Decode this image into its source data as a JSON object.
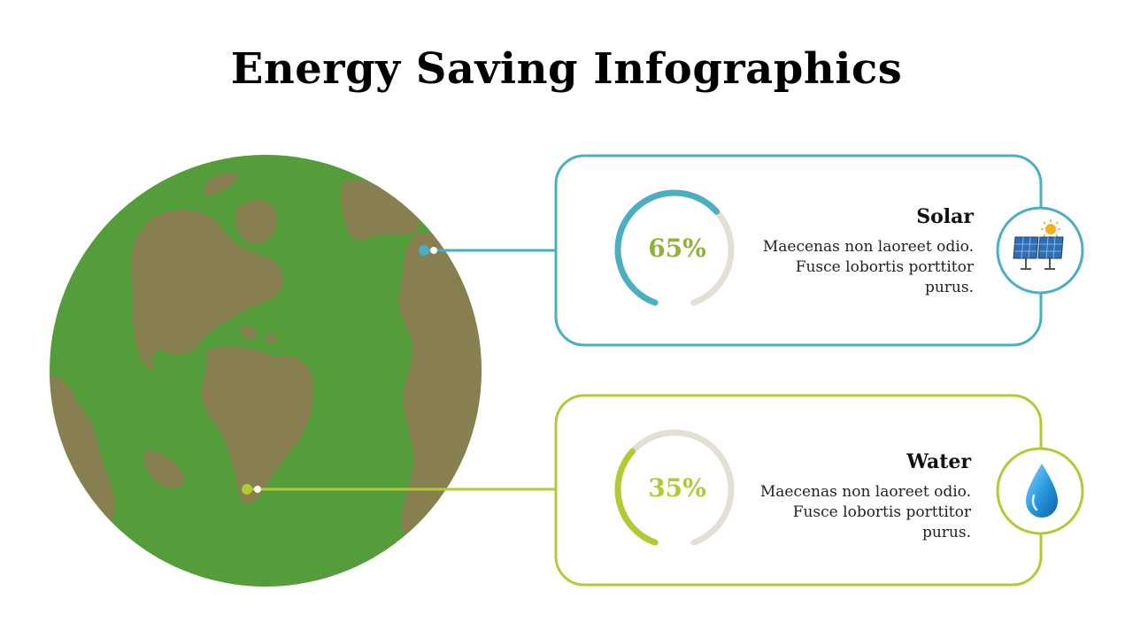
{
  "title": "Energy Saving Infographics",
  "colors": {
    "ocean": "#559C3A",
    "land": "#877F50",
    "solar": "#4AAFC2",
    "water": "#B5C935",
    "gauge_track": "#E3DED6",
    "value_text": "#8DB339"
  },
  "items": [
    {
      "id": "solar",
      "title": "Solar",
      "value_label": "65%",
      "percent": 65,
      "description": [
        "Maecenas non laoreet odio.",
        "Fusce lobortis porttitor",
        "purus."
      ],
      "icon": "solar-panel-icon"
    },
    {
      "id": "water",
      "title": "Water",
      "value_label": "35%",
      "percent": 35,
      "description": [
        "Maecenas non laoreet odio.",
        "Fusce lobortis porttitor",
        "purus."
      ],
      "icon": "water-drop-icon"
    }
  ]
}
